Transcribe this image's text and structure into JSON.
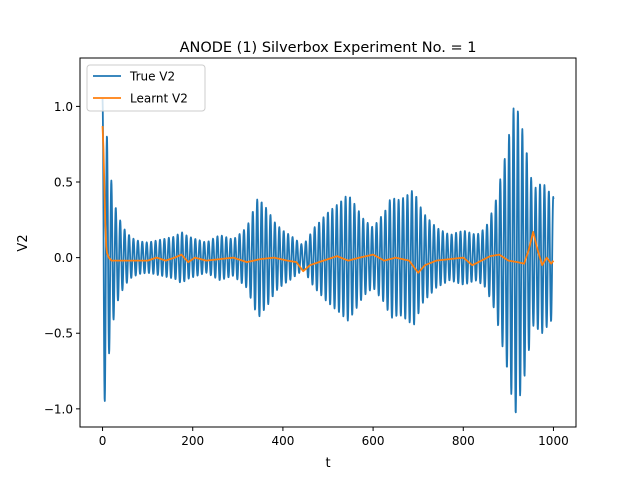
{
  "chart_data": {
    "type": "line",
    "title": "ANODE (1) Silverbox Experiment No. = 1",
    "xlabel": "t",
    "ylabel": "V2",
    "xlim": [
      -50,
      1050
    ],
    "ylim": [
      -1.12,
      1.32
    ],
    "xticks": [
      0,
      200,
      400,
      600,
      800,
      1000
    ],
    "xtick_labels": [
      "0",
      "200",
      "400",
      "600",
      "800",
      "1000"
    ],
    "yticks": [
      -1.0,
      -0.5,
      0.0,
      0.5,
      1.0
    ],
    "ytick_labels": [
      "−1.0",
      "−0.5",
      "0.0",
      "0.5",
      "1.0"
    ],
    "grid": false,
    "legend_position": "top-left",
    "series": [
      {
        "name": "True V2",
        "color": "#1f77b4",
        "oscillation_period": 9.8,
        "envelope": [
          [
            0,
            1.05
          ],
          [
            2,
            1.02
          ],
          [
            5,
            0.95
          ],
          [
            10,
            0.8
          ],
          [
            15,
            0.62
          ],
          [
            22,
            0.45
          ],
          [
            30,
            0.32
          ],
          [
            40,
            0.24
          ],
          [
            50,
            0.18
          ],
          [
            65,
            0.13
          ],
          [
            80,
            0.11
          ],
          [
            100,
            0.1
          ],
          [
            130,
            0.12
          ],
          [
            160,
            0.14
          ],
          [
            175,
            0.17
          ],
          [
            190,
            0.14
          ],
          [
            210,
            0.12
          ],
          [
            230,
            0.1
          ],
          [
            260,
            0.15
          ],
          [
            290,
            0.12
          ],
          [
            320,
            0.2
          ],
          [
            345,
            0.4
          ],
          [
            365,
            0.32
          ],
          [
            385,
            0.22
          ],
          [
            400,
            0.18
          ],
          [
            420,
            0.14
          ],
          [
            445,
            0.08
          ],
          [
            470,
            0.2
          ],
          [
            500,
            0.3
          ],
          [
            520,
            0.35
          ],
          [
            545,
            0.42
          ],
          [
            560,
            0.35
          ],
          [
            580,
            0.25
          ],
          [
            600,
            0.2
          ],
          [
            625,
            0.3
          ],
          [
            640,
            0.4
          ],
          [
            660,
            0.38
          ],
          [
            690,
            0.45
          ],
          [
            710,
            0.3
          ],
          [
            740,
            0.2
          ],
          [
            770,
            0.15
          ],
          [
            800,
            0.18
          ],
          [
            830,
            0.15
          ],
          [
            850,
            0.2
          ],
          [
            870,
            0.35
          ],
          [
            895,
            0.7
          ],
          [
            915,
            1.05
          ],
          [
            935,
            0.8
          ],
          [
            955,
            0.45
          ],
          [
            975,
            0.5
          ],
          [
            1000,
            0.4
          ]
        ]
      },
      {
        "name": "Learnt V2",
        "color": "#ff7f0e",
        "points": [
          [
            0,
            0.87
          ],
          [
            2,
            0.72
          ],
          [
            4,
            0.48
          ],
          [
            6,
            0.24
          ],
          [
            8,
            0.08
          ],
          [
            10,
            0.03
          ],
          [
            14,
            0.0
          ],
          [
            20,
            -0.02
          ],
          [
            40,
            -0.02
          ],
          [
            60,
            -0.02
          ],
          [
            80,
            -0.02
          ],
          [
            100,
            -0.02
          ],
          [
            120,
            0.0
          ],
          [
            140,
            -0.02
          ],
          [
            160,
            0.0
          ],
          [
            175,
            0.02
          ],
          [
            190,
            -0.03
          ],
          [
            205,
            0.0
          ],
          [
            230,
            -0.02
          ],
          [
            260,
            -0.01
          ],
          [
            290,
            0.0
          ],
          [
            320,
            -0.03
          ],
          [
            350,
            -0.01
          ],
          [
            380,
            0.0
          ],
          [
            410,
            -0.02
          ],
          [
            430,
            -0.03
          ],
          [
            445,
            -0.09
          ],
          [
            460,
            -0.05
          ],
          [
            480,
            -0.03
          ],
          [
            500,
            -0.01
          ],
          [
            520,
            0.01
          ],
          [
            545,
            -0.02
          ],
          [
            570,
            0.0
          ],
          [
            600,
            0.02
          ],
          [
            625,
            -0.02
          ],
          [
            650,
            0.0
          ],
          [
            680,
            -0.02
          ],
          [
            700,
            -0.1
          ],
          [
            715,
            -0.05
          ],
          [
            740,
            -0.02
          ],
          [
            770,
            -0.01
          ],
          [
            800,
            0.0
          ],
          [
            820,
            -0.05
          ],
          [
            840,
            -0.02
          ],
          [
            860,
            0.01
          ],
          [
            880,
            0.02
          ],
          [
            900,
            -0.02
          ],
          [
            920,
            -0.03
          ],
          [
            935,
            -0.04
          ],
          [
            945,
            0.05
          ],
          [
            955,
            0.17
          ],
          [
            965,
            0.05
          ],
          [
            975,
            -0.05
          ],
          [
            985,
            0.0
          ],
          [
            995,
            -0.04
          ],
          [
            1000,
            -0.02
          ]
        ]
      }
    ]
  }
}
